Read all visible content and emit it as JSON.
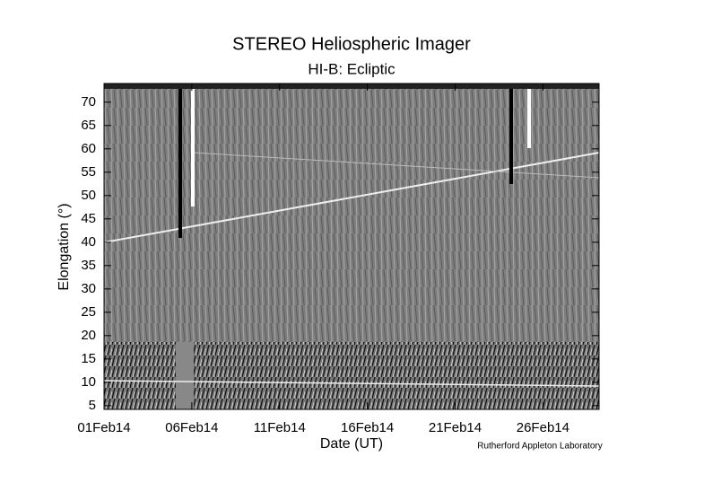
{
  "chart_data": {
    "type": "image",
    "title": "STEREO Heliospheric Imager",
    "subtitle": "HI-B: Ecliptic",
    "xlabel": "Date (UT)",
    "ylabel": "Elongation (°)",
    "credit": "Rutherford Appleton Laboratory",
    "xlim": [
      "2014-02-01T00:00:00Z",
      "2014-03-01T04:48:00Z"
    ],
    "xticks": [
      {
        "value": "2014-02-01T00:00:00Z",
        "label": "01Feb14"
      },
      {
        "value": "2014-02-06T00:00:00Z",
        "label": "06Feb14"
      },
      {
        "value": "2014-02-11T00:00:00Z",
        "label": "11Feb14"
      },
      {
        "value": "2014-02-16T00:00:00Z",
        "label": "16Feb14"
      },
      {
        "value": "2014-02-21T00:00:00Z",
        "label": "21Feb14"
      },
      {
        "value": "2014-02-26T00:00:00Z",
        "label": "26Feb14"
      }
    ],
    "ylim": [
      4.2,
      74
    ],
    "yticks": [
      5,
      10,
      15,
      20,
      25,
      30,
      35,
      40,
      45,
      50,
      55,
      60,
      65,
      70
    ]
  }
}
